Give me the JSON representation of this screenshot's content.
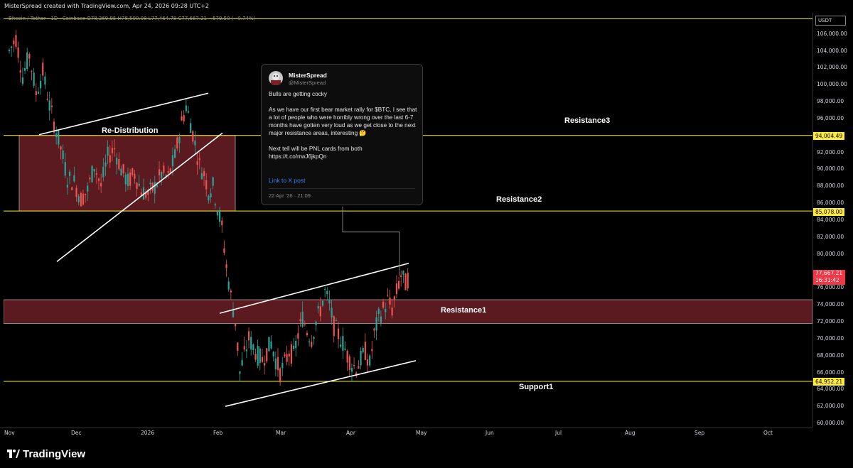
{
  "header": {
    "caption": "MisterSpread created with TradingView.com, Apr 24, 2026 09:28 UTC+2",
    "symbol": "Bitcoin / Tether · 1D · Coinbase",
    "ohlc": "O78,269.95 H78,500.08 L77,464.78 C77,667.21 −579.50 (−0.74%)"
  },
  "price_axis": {
    "currency": "USDT",
    "ticks": [
      "106,000.00",
      "104,000.00",
      "102,000.00",
      "100,000.00",
      "98,000.00",
      "96,000.00",
      "92,000.00",
      "90,000.00",
      "88,000.00",
      "86,000.00",
      "84,000.00",
      "82,000.00",
      "80,000.00",
      "76,000.00",
      "74,000.00",
      "72,000.00",
      "70,000.00",
      "68,000.00",
      "66,000.00",
      "64,000.00",
      "62,000.00",
      "60,000.00"
    ],
    "level_labels": [
      "94,004.49",
      "85,078.00",
      "64,952.21"
    ],
    "last_price": "77,667.21",
    "countdown": "16:31:42"
  },
  "time_axis": {
    "labels": [
      "Nov",
      "Dec",
      "2026",
      "Feb",
      "Mar",
      "Apr",
      "May",
      "Jun",
      "Jul",
      "Aug",
      "Sep",
      "Oct"
    ]
  },
  "zones": {
    "redistribution": "Re-Distribution",
    "resistance3": "Resistance3",
    "resistance2": "Resistance2",
    "resistance1": "Resistance1",
    "support1": "Support1"
  },
  "tweet": {
    "name": "MisterSpread",
    "handle": "@MisterSpread",
    "body": "Bulls are getting cocky\n\nAs we have our first bear market rally for $BTC, I see that a lot of people who were horribly wrong over the last 6-7 months have gotten very loud as we get close to the next major resistance areas, interesting 🤔\n\nNext tell will be PNL cards from both\nhttps://t.co/rrwJ6jkpQn",
    "link": "Link to X post",
    "date": "22 Apr '26 · 21:09"
  },
  "footer": {
    "brand": "TradingView"
  },
  "colors": {
    "up": "#26a69a",
    "down": "#ef5350",
    "zone": "#5a1a1f",
    "level": "#ffeb3b",
    "last": "#f23645"
  },
  "chart_data": {
    "type": "candlestick",
    "title": "Bitcoin / Tether · 1D · Coinbase",
    "ylim": [
      59500,
      108500
    ],
    "horizontal_levels": [
      94004.49,
      85078.0,
      64952.21
    ],
    "resistance1_zone": [
      71800,
      74600
    ],
    "redistribution_zone": [
      85078,
      94004
    ],
    "close_path": [
      [
        0,
        104000
      ],
      [
        3,
        105500
      ],
      [
        6,
        101000
      ],
      [
        9,
        103500
      ],
      [
        12,
        99000
      ],
      [
        15,
        101500
      ],
      [
        18,
        97500
      ],
      [
        20,
        95500
      ],
      [
        23,
        92500
      ],
      [
        26,
        89000
      ],
      [
        29,
        88500
      ],
      [
        32,
        86500
      ],
      [
        35,
        87500
      ],
      [
        38,
        90500
      ],
      [
        41,
        88000
      ],
      [
        44,
        91500
      ],
      [
        47,
        92500
      ],
      [
        50,
        90000
      ],
      [
        53,
        88500
      ],
      [
        56,
        89500
      ],
      [
        59,
        87500
      ],
      [
        62,
        87000
      ],
      [
        65,
        88000
      ],
      [
        68,
        89500
      ],
      [
        71,
        89000
      ],
      [
        74,
        91500
      ],
      [
        77,
        95500
      ],
      [
        79,
        97500
      ],
      [
        81,
        95500
      ],
      [
        83,
        93000
      ],
      [
        85,
        90500
      ],
      [
        87,
        89500
      ],
      [
        89,
        87500
      ],
      [
        91,
        88000
      ],
      [
        93,
        85500
      ],
      [
        95,
        83000
      ],
      [
        97,
        78500
      ],
      [
        99,
        75000
      ],
      [
        101,
        72000
      ],
      [
        103,
        66000
      ],
      [
        105,
        68000
      ],
      [
        107,
        70000
      ],
      [
        109,
        69000
      ],
      [
        111,
        68000
      ],
      [
        113,
        67500
      ],
      [
        115,
        68500
      ],
      [
        117,
        69500
      ],
      [
        119,
        67500
      ],
      [
        121,
        66000
      ],
      [
        123,
        67000
      ],
      [
        125,
        68500
      ],
      [
        127,
        68000
      ],
      [
        129,
        70500
      ],
      [
        131,
        72500
      ],
      [
        133,
        71000
      ],
      [
        135,
        70000
      ],
      [
        137,
        72000
      ],
      [
        139,
        73500
      ],
      [
        141,
        75500
      ],
      [
        143,
        74000
      ],
      [
        145,
        71500
      ],
      [
        147,
        70500
      ],
      [
        149,
        69500
      ],
      [
        151,
        68000
      ],
      [
        153,
        67000
      ],
      [
        155,
        66500
      ],
      [
        157,
        67500
      ],
      [
        159,
        68500
      ],
      [
        161,
        67000
      ],
      [
        163,
        70500
      ],
      [
        165,
        72500
      ],
      [
        167,
        73500
      ],
      [
        169,
        74500
      ],
      [
        171,
        73500
      ],
      [
        173,
        75500
      ],
      [
        175,
        77500
      ],
      [
        177,
        76500
      ],
      [
        179,
        77667
      ]
    ],
    "x_range": [
      0,
      300
    ]
  }
}
